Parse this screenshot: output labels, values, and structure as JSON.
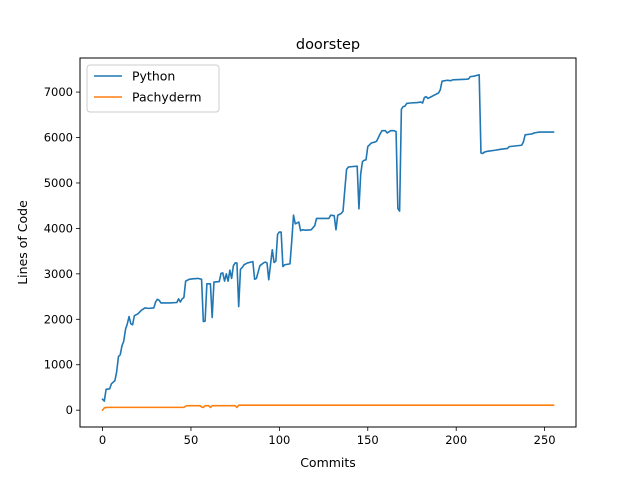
{
  "chart_data": {
    "type": "line",
    "title": "doorstep",
    "xlabel": "Commits",
    "ylabel": "Lines of Code",
    "xlim": [
      -12.75,
      267.75
    ],
    "ylim": [
      -370,
      7750
    ],
    "xticks": [
      0,
      50,
      100,
      150,
      200,
      250
    ],
    "yticks": [
      0,
      1000,
      2000,
      3000,
      4000,
      5000,
      6000,
      7000
    ],
    "grid": false,
    "legend_position": "top-left",
    "series": [
      {
        "name": "Python",
        "color": "#1f77b4",
        "points": [
          [
            0,
            240
          ],
          [
            1,
            200
          ],
          [
            2,
            460
          ],
          [
            4,
            470
          ],
          [
            5,
            580
          ],
          [
            7,
            650
          ],
          [
            8,
            850
          ],
          [
            9,
            1180
          ],
          [
            10,
            1220
          ],
          [
            11,
            1420
          ],
          [
            12,
            1520
          ],
          [
            13,
            1780
          ],
          [
            14,
            1900
          ],
          [
            15,
            2060
          ],
          [
            16,
            1900
          ],
          [
            17,
            1880
          ],
          [
            18,
            2080
          ],
          [
            20,
            2120
          ],
          [
            22,
            2200
          ],
          [
            24,
            2250
          ],
          [
            26,
            2240
          ],
          [
            29,
            2250
          ],
          [
            30,
            2380
          ],
          [
            31,
            2440
          ],
          [
            32,
            2420
          ],
          [
            33,
            2360
          ],
          [
            38,
            2360
          ],
          [
            42,
            2370
          ],
          [
            43,
            2450
          ],
          [
            44,
            2380
          ],
          [
            45,
            2450
          ],
          [
            46,
            2480
          ],
          [
            47,
            2840
          ],
          [
            49,
            2880
          ],
          [
            51,
            2890
          ],
          [
            54,
            2900
          ],
          [
            56,
            2880
          ],
          [
            57,
            1950
          ],
          [
            58,
            1960
          ],
          [
            59,
            2780
          ],
          [
            61,
            2780
          ],
          [
            62,
            2040
          ],
          [
            63,
            2820
          ],
          [
            66,
            2830
          ],
          [
            67,
            3010
          ],
          [
            68,
            3020
          ],
          [
            69,
            2840
          ],
          [
            70,
            3000
          ],
          [
            71,
            2840
          ],
          [
            72,
            3080
          ],
          [
            73,
            2900
          ],
          [
            74,
            3180
          ],
          [
            75,
            3240
          ],
          [
            76,
            3240
          ],
          [
            77,
            2280
          ],
          [
            78,
            3100
          ],
          [
            79,
            3140
          ],
          [
            80,
            3200
          ],
          [
            82,
            3240
          ],
          [
            85,
            3270
          ],
          [
            86,
            2880
          ],
          [
            87,
            2900
          ],
          [
            88,
            3040
          ],
          [
            89,
            3180
          ],
          [
            91,
            3240
          ],
          [
            92,
            3260
          ],
          [
            93,
            3240
          ],
          [
            94,
            2870
          ],
          [
            95,
            3210
          ],
          [
            96,
            3530
          ],
          [
            97,
            3250
          ],
          [
            98,
            3280
          ],
          [
            99,
            3870
          ],
          [
            100,
            3920
          ],
          [
            101,
            3920
          ],
          [
            102,
            3160
          ],
          [
            103,
            3200
          ],
          [
            106,
            3220
          ],
          [
            107,
            3720
          ],
          [
            108,
            4290
          ],
          [
            109,
            4100
          ],
          [
            110,
            4120
          ],
          [
            111,
            4140
          ],
          [
            112,
            3950
          ],
          [
            113,
            3970
          ],
          [
            115,
            3960
          ],
          [
            118,
            3970
          ],
          [
            120,
            4060
          ],
          [
            121,
            4220
          ],
          [
            124,
            4220
          ],
          [
            128,
            4220
          ],
          [
            129,
            4290
          ],
          [
            131,
            4280
          ],
          [
            132,
            3970
          ],
          [
            133,
            4290
          ],
          [
            135,
            4330
          ],
          [
            136,
            4380
          ],
          [
            137,
            4850
          ],
          [
            138,
            5300
          ],
          [
            139,
            5350
          ],
          [
            141,
            5360
          ],
          [
            144,
            5370
          ],
          [
            145,
            4430
          ],
          [
            146,
            5200
          ],
          [
            147,
            5470
          ],
          [
            148,
            5500
          ],
          [
            149,
            5510
          ],
          [
            150,
            5800
          ],
          [
            151,
            5840
          ],
          [
            152,
            5880
          ],
          [
            154,
            5900
          ],
          [
            155,
            5920
          ],
          [
            156,
            6000
          ],
          [
            157,
            6080
          ],
          [
            158,
            6150
          ],
          [
            160,
            6150
          ],
          [
            161,
            6100
          ],
          [
            163,
            6150
          ],
          [
            165,
            6150
          ],
          [
            166,
            6130
          ],
          [
            167,
            4440
          ],
          [
            168,
            4380
          ],
          [
            169,
            6620
          ],
          [
            170,
            6680
          ],
          [
            171,
            6690
          ],
          [
            172,
            6750
          ],
          [
            174,
            6760
          ],
          [
            178,
            6770
          ],
          [
            180,
            6780
          ],
          [
            181,
            6760
          ],
          [
            182,
            6880
          ],
          [
            183,
            6900
          ],
          [
            184,
            6860
          ],
          [
            186,
            6900
          ],
          [
            187,
            6920
          ],
          [
            190,
            6980
          ],
          [
            191,
            7050
          ],
          [
            192,
            7240
          ],
          [
            195,
            7260
          ],
          [
            197,
            7250
          ],
          [
            198,
            7270
          ],
          [
            205,
            7280
          ],
          [
            207,
            7290
          ],
          [
            208,
            7340
          ],
          [
            210,
            7350
          ],
          [
            212,
            7370
          ],
          [
            213,
            7380
          ],
          [
            214,
            5660
          ],
          [
            215,
            5650
          ],
          [
            216,
            5680
          ],
          [
            218,
            5700
          ],
          [
            222,
            5720
          ],
          [
            225,
            5740
          ],
          [
            229,
            5760
          ],
          [
            230,
            5800
          ],
          [
            237,
            5830
          ],
          [
            238,
            5900
          ],
          [
            239,
            6060
          ],
          [
            243,
            6080
          ],
          [
            244,
            6100
          ],
          [
            247,
            6120
          ],
          [
            255,
            6120
          ]
        ]
      },
      {
        "name": "Pachyderm",
        "color": "#ff7f0e",
        "points": [
          [
            0,
            0
          ],
          [
            1,
            50
          ],
          [
            2,
            60
          ],
          [
            5,
            62
          ],
          [
            10,
            62
          ],
          [
            20,
            62
          ],
          [
            30,
            62
          ],
          [
            40,
            62
          ],
          [
            46,
            62
          ],
          [
            47,
            90
          ],
          [
            48,
            100
          ],
          [
            55,
            100
          ],
          [
            56,
            70
          ],
          [
            57,
            60
          ],
          [
            58,
            100
          ],
          [
            60,
            100
          ],
          [
            61,
            60
          ],
          [
            62,
            100
          ],
          [
            67,
            100
          ],
          [
            75,
            100
          ],
          [
            76,
            60
          ],
          [
            77,
            110
          ],
          [
            85,
            110
          ],
          [
            100,
            110
          ],
          [
            150,
            110
          ],
          [
            200,
            110
          ],
          [
            255,
            110
          ]
        ]
      }
    ]
  }
}
